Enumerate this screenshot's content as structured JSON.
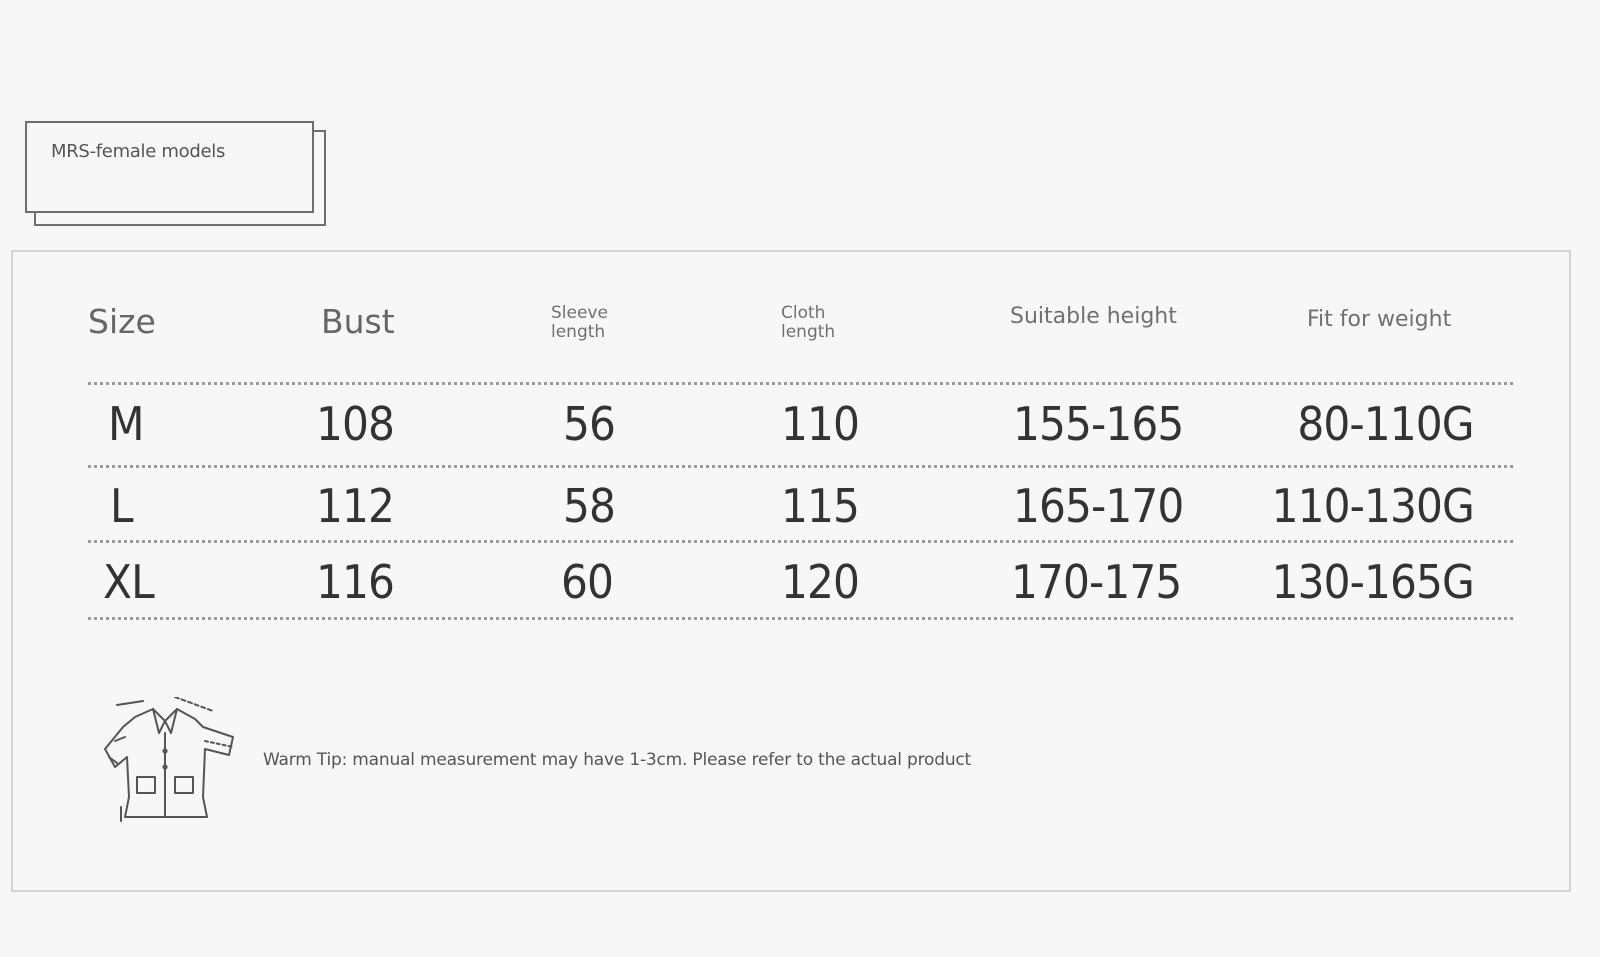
{
  "tag": {
    "label": "MRS-female models"
  },
  "table": {
    "headers": {
      "size": "Size",
      "bust": "Bust",
      "sleeve_line1": "Sleeve",
      "sleeve_line2": "length",
      "cloth_line1": "Cloth",
      "cloth_line2": "length",
      "height": "Suitable height",
      "weight": "Fit for weight"
    },
    "rows": [
      {
        "size": "M",
        "bust": "108",
        "sleeve": "56",
        "cloth": "110",
        "height": "155-165",
        "weight": "80-110G"
      },
      {
        "size": "L",
        "bust": "112",
        "sleeve": "58",
        "cloth": "115",
        "height": "165-170",
        "weight": "110-130G"
      },
      {
        "size": "XL",
        "bust": "116",
        "sleeve": "60",
        "cloth": "120",
        "height": "170-175",
        "weight": "130-165G"
      }
    ]
  },
  "tip": {
    "text": "Warm Tip: manual measurement may have 1-3cm. Please refer to the actual product",
    "icon": "garment-measure-icon"
  },
  "colors": {
    "background": "#f7f7f7",
    "border": "#d4d4d4",
    "text": "#333333"
  }
}
